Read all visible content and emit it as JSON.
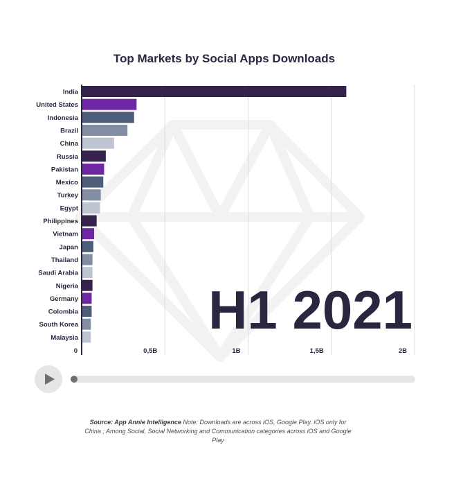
{
  "chart_data": {
    "type": "bar",
    "orientation": "horizontal",
    "title": "Top Markets by Social Apps Downloads",
    "categories": [
      "India",
      "United States",
      "Indonesia",
      "Brazil",
      "China",
      "Russia",
      "Pakistan",
      "Mexico",
      "Turkey",
      "Egypt",
      "Philippines",
      "Vietnam",
      "Japan",
      "Thailand",
      "Saudi Arabia",
      "Nigeria",
      "Germany",
      "Colombia",
      "South Korea",
      "Malaysia"
    ],
    "values": [
      1.59,
      0.33,
      0.315,
      0.275,
      0.195,
      0.145,
      0.135,
      0.13,
      0.115,
      0.11,
      0.09,
      0.075,
      0.07,
      0.065,
      0.065,
      0.065,
      0.06,
      0.06,
      0.055,
      0.055
    ],
    "value_unit": "billions of downloads",
    "xlim": [
      0,
      2
    ],
    "xticks": [
      0,
      0.5,
      1,
      1.5,
      2
    ],
    "xtick_labels": [
      "0",
      "0,5B",
      "1B",
      "1,5B",
      "2B"
    ],
    "bar_colors": [
      "#35234d",
      "#7027a6",
      "#4c5c79",
      "#828ea3",
      "#bec4d1"
    ],
    "grid": true,
    "period_label": "H1 2021"
  },
  "player": {
    "play_icon": "play-icon",
    "progress": 0
  },
  "footnote": {
    "source": "Source: App Annie Intelligence",
    "note": "Note: Downloads are across iOS, Google Play. iOS only for China ; Among Social, Social Networking and Communication categories across iOS and Google Play"
  }
}
